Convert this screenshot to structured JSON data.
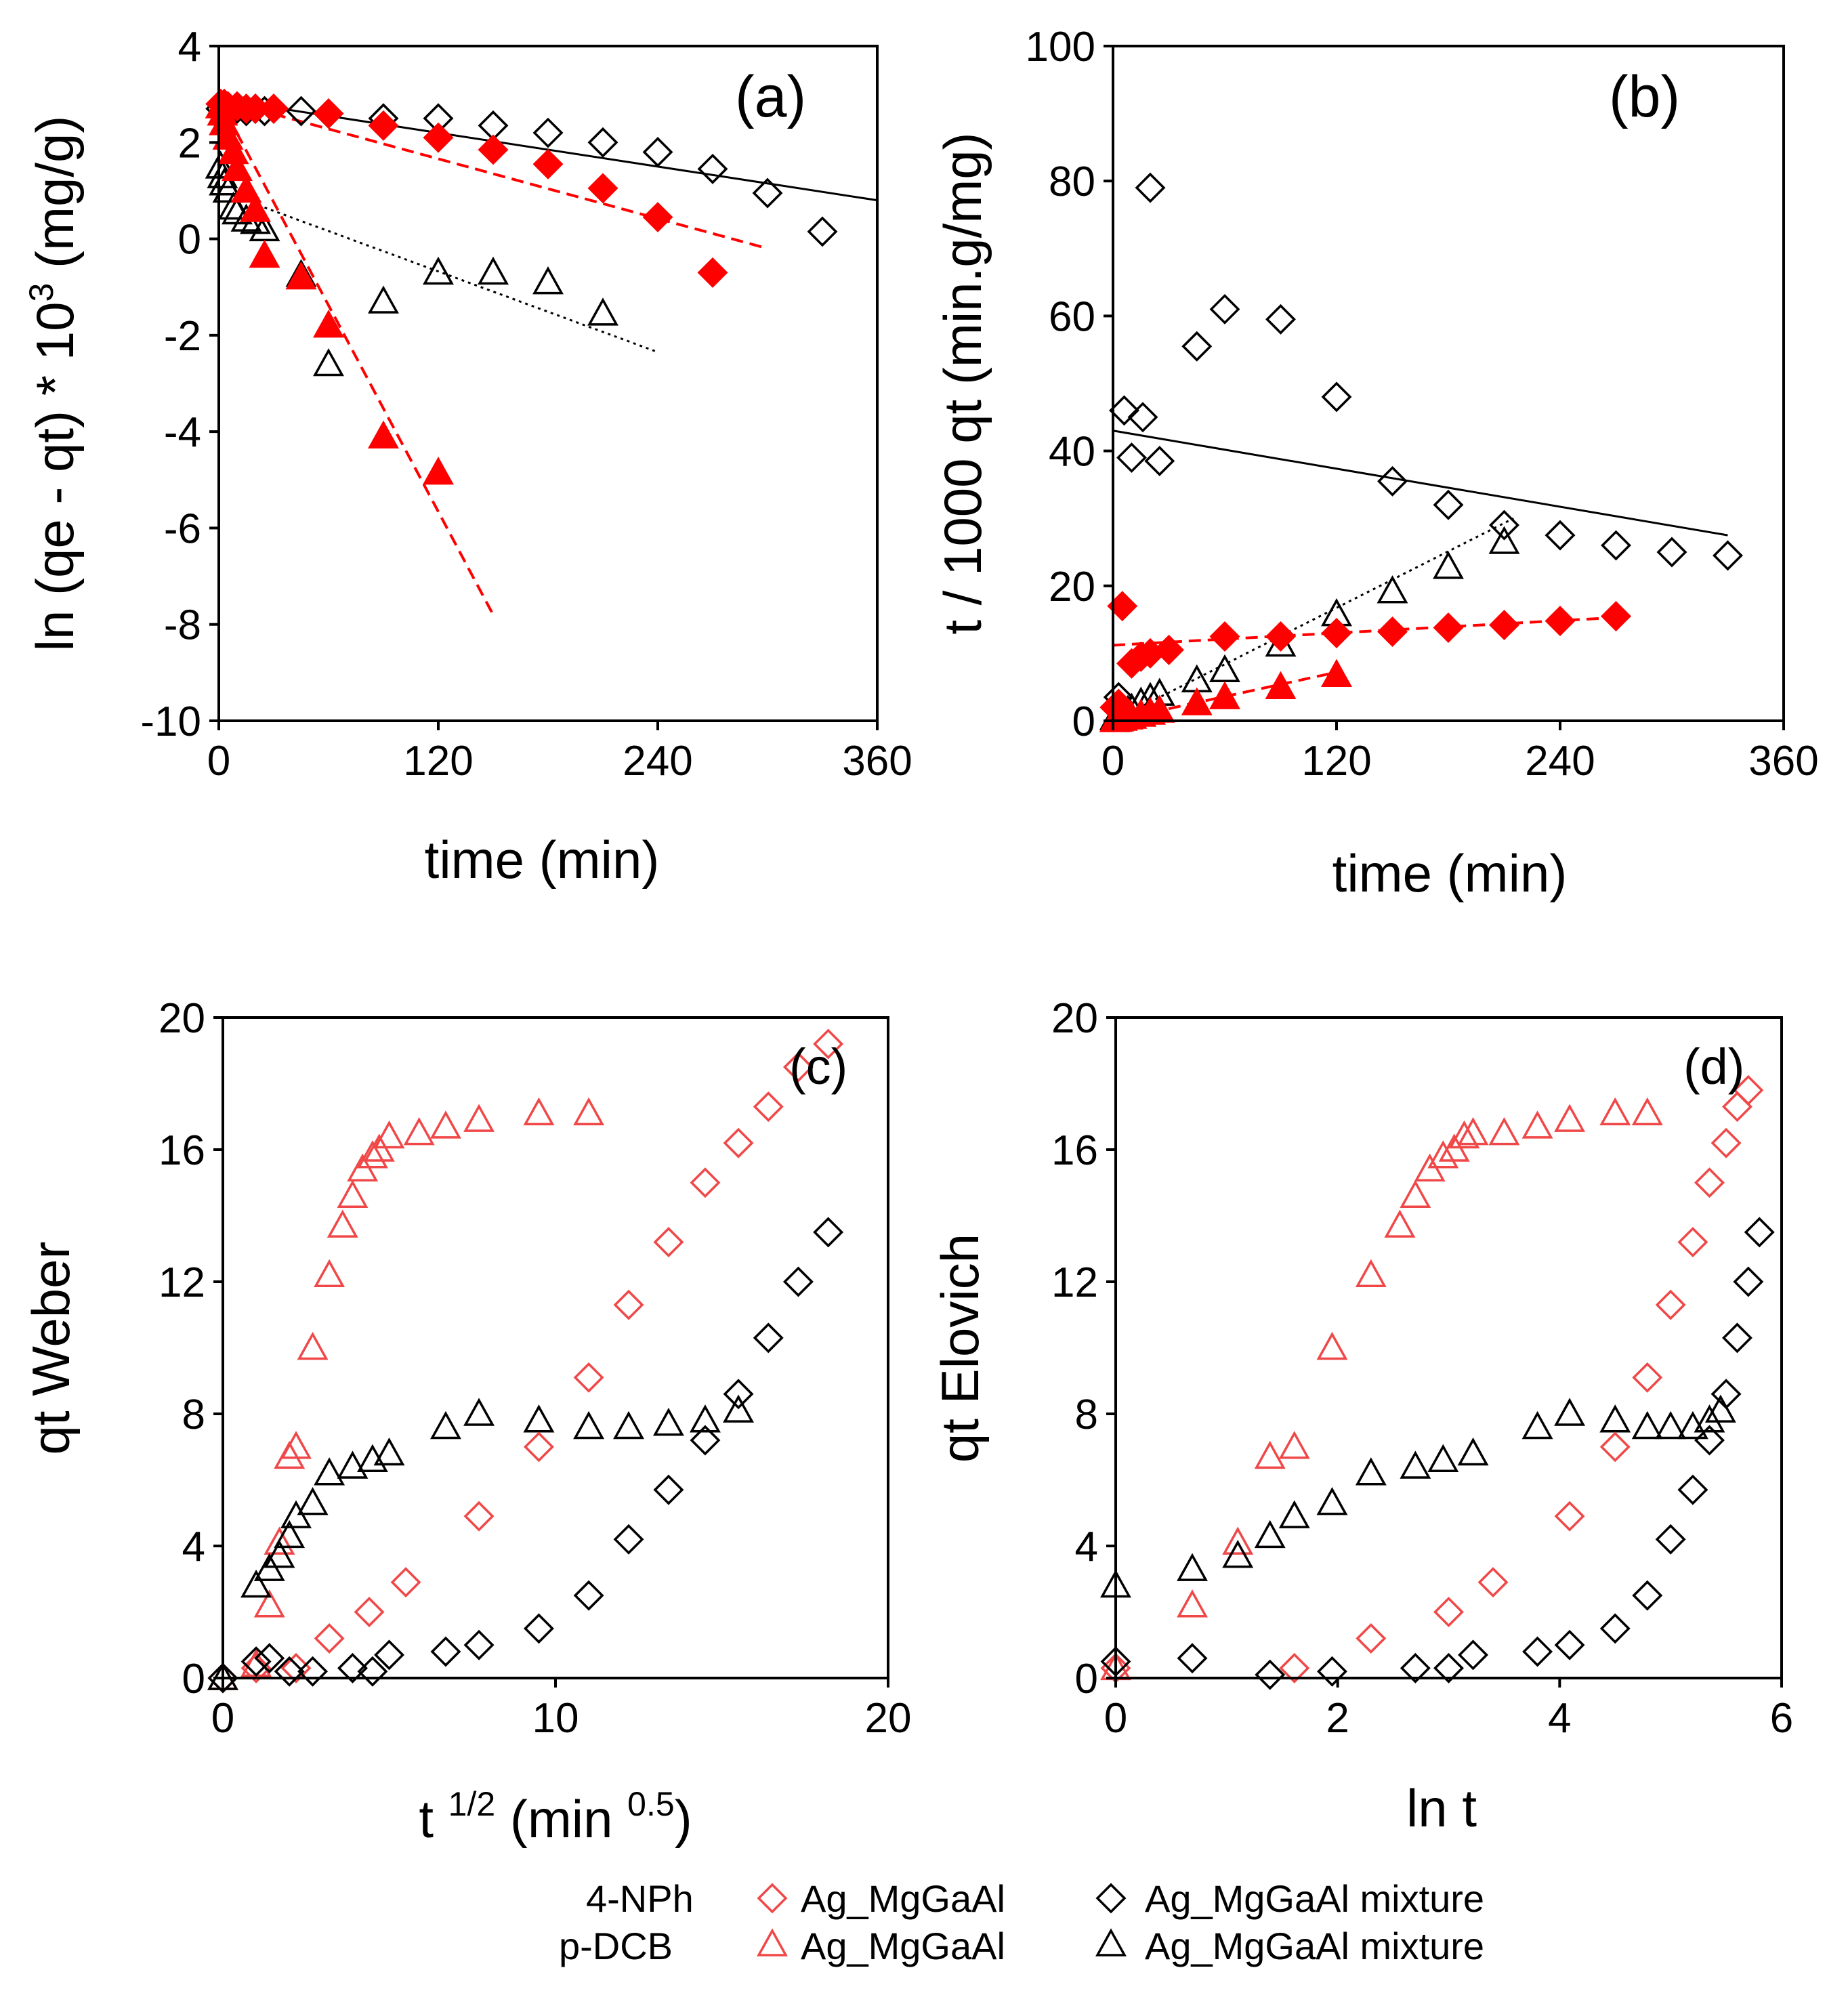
{
  "colors": {
    "red": "#ff0000",
    "black": "#000000",
    "light_red": "#f04848"
  },
  "chart_data": [
    {
      "id": "a",
      "type": "scatter",
      "panel_label": "(a)",
      "xlabel": "time (min)",
      "ylabel_main": "ln (qe - qt) * 10",
      "ylabel_sup": "3",
      "ylabel_tail": " (mg/g)",
      "xlim": [
        0,
        360
      ],
      "ylim": [
        -10,
        4
      ],
      "xticks": [
        0,
        120,
        240,
        360
      ],
      "yticks": [
        -10,
        -8,
        -6,
        -4,
        -2,
        0,
        2,
        4
      ],
      "xticklabels": [
        "0",
        "120",
        "240",
        "360"
      ],
      "yticklabels": [
        "-10",
        "-8",
        "-6",
        "-4",
        "-2",
        "0",
        "2",
        "4"
      ],
      "series": [
        {
          "name": "4-NPh Ag_MgGaAl mixture",
          "marker": "diamond",
          "fill": "none",
          "color": "black",
          "x": [
            1,
            3,
            5,
            8,
            10,
            15,
            20,
            25,
            45,
            60,
            90,
            120,
            150,
            180,
            210,
            240,
            270,
            300,
            330
          ],
          "y": [
            2.7,
            2.75,
            2.7,
            2.65,
            2.7,
            2.65,
            2.7,
            2.65,
            2.65,
            2.6,
            2.5,
            2.5,
            2.35,
            2.2,
            2.0,
            1.8,
            1.45,
            0.95,
            0.15
          ]
        },
        {
          "name": "4-NPh Ag_MgGaAl",
          "marker": "diamond",
          "fill": "filled",
          "color": "red",
          "x": [
            1,
            3,
            5,
            10,
            15,
            20,
            30,
            60,
            90,
            120,
            150,
            180,
            210,
            240,
            270
          ],
          "y": [
            2.8,
            2.8,
            2.75,
            2.75,
            2.7,
            2.7,
            2.7,
            2.6,
            2.35,
            2.1,
            1.85,
            1.55,
            1.05,
            0.45,
            -0.7
          ]
        },
        {
          "name": "p-DCB Ag_MgGaAl mixture",
          "marker": "triangle",
          "fill": "none",
          "color": "black",
          "x": [
            1,
            2,
            3,
            5,
            8,
            10,
            15,
            20,
            25,
            45,
            60,
            90,
            120,
            150,
            180,
            210
          ],
          "y": [
            1.5,
            1.3,
            1.15,
            1.0,
            0.65,
            0.55,
            0.4,
            0.35,
            0.2,
            -0.75,
            -2.6,
            -1.3,
            -0.7,
            -0.7,
            -0.9,
            -1.55
          ]
        },
        {
          "name": "p-DCB Ag_MgGaAl",
          "marker": "triangle",
          "fill": "filled",
          "color": "red",
          "x": [
            1,
            2,
            3,
            5,
            8,
            10,
            15,
            20,
            25,
            45,
            60,
            90,
            120
          ],
          "y": [
            2.75,
            2.6,
            2.4,
            2.1,
            1.8,
            1.45,
            1.0,
            0.6,
            -0.35,
            -0.8,
            -1.8,
            -4.1,
            -4.85
          ]
        }
      ],
      "fits": [
        {
          "style": "solid",
          "color": "black",
          "x": [
            0,
            360
          ],
          "y": [
            2.9,
            0.8
          ]
        },
        {
          "style": "dashed",
          "color": "red",
          "x": [
            0,
            300
          ],
          "y": [
            2.9,
            -0.2
          ]
        },
        {
          "style": "dotted",
          "color": "black",
          "x": [
            25,
            240
          ],
          "y": [
            0.65,
            -2.35
          ]
        },
        {
          "style": "dashed",
          "color": "red",
          "x": [
            0,
            150
          ],
          "y": [
            2.9,
            -7.8
          ]
        }
      ]
    },
    {
      "id": "b",
      "type": "scatter",
      "panel_label": "(b)",
      "xlabel": "time (min)",
      "ylabel_main": "t / 1000 qt (min.g/mg)",
      "xlim": [
        0,
        360
      ],
      "ylim": [
        0,
        100
      ],
      "xticks": [
        0,
        120,
        240,
        360
      ],
      "yticks": [
        0,
        20,
        40,
        60,
        80,
        100
      ],
      "xticklabels": [
        "0",
        "120",
        "240",
        "360"
      ],
      "yticklabels": [
        "0",
        "20",
        "40",
        "60",
        "80",
        "100"
      ],
      "series": [
        {
          "name": "4-NPh Ag_MgGaAl mixture",
          "marker": "diamond",
          "fill": "none",
          "color": "black",
          "x": [
            3,
            6,
            10,
            16,
            20,
            25,
            45,
            60,
            90,
            120,
            150,
            180,
            210,
            240,
            270,
            300,
            330
          ],
          "y": [
            3.5,
            46,
            39,
            45,
            79,
            38.5,
            55.5,
            61,
            59.5,
            48,
            35.5,
            32,
            29,
            27.5,
            26,
            25,
            24.5
          ]
        },
        {
          "name": "p-DCB Ag_MgGaAl mixture",
          "marker": "triangle",
          "fill": "none",
          "color": "black",
          "x": [
            1,
            2,
            3,
            5,
            8,
            10,
            15,
            20,
            25,
            45,
            60,
            90,
            120,
            150,
            180,
            210
          ],
          "y": [
            0.4,
            0.6,
            0.8,
            1.0,
            1.5,
            1.8,
            2.7,
            3.4,
            4.0,
            6.0,
            7.5,
            11.3,
            15.8,
            19.2,
            22.8,
            26.5
          ]
        },
        {
          "name": "4-NPh Ag_MgGaAl",
          "marker": "diamond",
          "fill": "filled",
          "color": "red",
          "x": [
            1,
            3,
            5,
            10,
            15,
            20,
            30,
            60,
            90,
            120,
            150,
            180,
            210,
            240,
            270
          ],
          "y": [
            2.0,
            2.5,
            17,
            8.5,
            9.5,
            10.0,
            10.5,
            12.5,
            12.5,
            13.0,
            13.2,
            13.8,
            14.2,
            14.8,
            15.5
          ]
        },
        {
          "name": "p-DCB Ag_MgGaAl",
          "marker": "triangle",
          "fill": "filled",
          "color": "red",
          "x": [
            1,
            2,
            3,
            5,
            8,
            10,
            15,
            20,
            25,
            45,
            60,
            90,
            120
          ],
          "y": [
            0.1,
            0.15,
            0.2,
            0.3,
            0.5,
            0.6,
            0.9,
            1.2,
            1.5,
            2.6,
            3.5,
            5.0,
            6.8
          ]
        }
      ],
      "fits": [
        {
          "style": "solid",
          "color": "black",
          "x": [
            0,
            330
          ],
          "y": [
            43,
            27.5
          ]
        },
        {
          "style": "dotted",
          "color": "black",
          "x": [
            0,
            215
          ],
          "y": [
            0,
            30
          ]
        },
        {
          "style": "dashed",
          "color": "red",
          "x": [
            0,
            270
          ],
          "y": [
            11.2,
            15.3
          ]
        },
        {
          "style": "dashed",
          "color": "red",
          "x": [
            0,
            120
          ],
          "y": [
            0,
            7.2
          ]
        }
      ]
    },
    {
      "id": "c",
      "type": "scatter",
      "panel_label": "(c)",
      "xlabel_main": "t ",
      "xlabel_sup1": "1/2",
      "xlabel_mid": " (min ",
      "xlabel_sup2": "0.5",
      "xlabel_tail": ")",
      "ylabel_main": "qt Weber",
      "xlim": [
        0,
        20
      ],
      "ylim": [
        0,
        20
      ],
      "xticks": [
        0,
        10,
        20
      ],
      "yticks": [
        0,
        4,
        8,
        12,
        16,
        20
      ],
      "xticklabels": [
        "0",
        "10",
        "20"
      ],
      "yticklabels": [
        "0",
        "4",
        "8",
        "12",
        "16",
        "20"
      ],
      "series": [
        {
          "name": "p-DCB Ag_MgGaAl",
          "marker": "triangle",
          "fill": "none",
          "color": "light_red",
          "x": [
            0,
            1.0,
            1.4,
            1.7,
            2.0,
            2.2,
            2.7,
            3.2,
            3.6,
            3.9,
            4.2,
            4.5,
            4.7,
            5.0,
            5.9,
            6.7,
            7.7,
            9.5,
            11.0
          ],
          "y": [
            0,
            0.4,
            2.2,
            4.1,
            6.7,
            7.0,
            10.0,
            12.2,
            13.7,
            14.6,
            15.4,
            15.8,
            16.0,
            16.4,
            16.5,
            16.7,
            16.9,
            17.1,
            17.1
          ]
        },
        {
          "name": "p-DCB Ag_MgGaAl mixture",
          "marker": "triangle",
          "fill": "none",
          "color": "black",
          "x": [
            0,
            1.0,
            1.4,
            1.7,
            2.0,
            2.2,
            2.7,
            3.2,
            3.9,
            4.5,
            5.0,
            6.7,
            7.7,
            9.5,
            11.0,
            12.2,
            13.4,
            14.5,
            15.5
          ],
          "y": [
            0,
            2.8,
            3.3,
            3.7,
            4.3,
            4.9,
            5.3,
            6.2,
            6.4,
            6.6,
            6.8,
            7.6,
            8.0,
            7.8,
            7.6,
            7.6,
            7.7,
            7.8,
            8.1
          ]
        },
        {
          "name": "4-NPh Ag_MgGaAl",
          "marker": "diamond",
          "fill": "none",
          "color": "light_red",
          "x": [
            0,
            1.0,
            2.2,
            3.2,
            4.4,
            5.5,
            7.7,
            9.5,
            11.0,
            12.2,
            13.4,
            14.5,
            15.5,
            16.4,
            17.3,
            18.2
          ],
          "y": [
            0,
            0.3,
            0.3,
            1.2,
            2.0,
            2.9,
            4.9,
            7.0,
            9.1,
            11.3,
            13.2,
            15.0,
            16.2,
            17.3,
            18.5,
            19.2
          ]
        },
        {
          "name": "4-NPh Ag_MgGaAl mixture",
          "marker": "diamond",
          "fill": "none",
          "color": "black",
          "x": [
            0,
            1.0,
            1.4,
            2.0,
            2.7,
            3.9,
            4.5,
            5.0,
            6.7,
            7.7,
            9.5,
            11.0,
            12.2,
            13.4,
            14.5,
            15.5,
            16.4,
            17.3,
            18.2
          ],
          "y": [
            0,
            0.5,
            0.6,
            0.2,
            0.2,
            0.3,
            0.2,
            0.7,
            0.8,
            1.0,
            1.5,
            2.5,
            4.2,
            5.7,
            7.2,
            8.6,
            10.3,
            12.0,
            13.5
          ]
        }
      ]
    },
    {
      "id": "d",
      "type": "scatter",
      "panel_label": "(d)",
      "xlabel": "ln t",
      "ylabel_main": "qt Elovich",
      "xlim": [
        0,
        6
      ],
      "ylim": [
        0,
        20
      ],
      "xticks": [
        0,
        2,
        4,
        6
      ],
      "yticks": [
        0,
        4,
        8,
        12,
        16,
        20
      ],
      "xticklabels": [
        "0",
        "2",
        "4",
        "6"
      ],
      "yticklabels": [
        "0",
        "4",
        "8",
        "12",
        "16",
        "20"
      ],
      "series": [
        {
          "name": "p-DCB Ag_MgGaAl",
          "marker": "triangle",
          "fill": "none",
          "color": "light_red",
          "x": [
            0,
            0.69,
            1.1,
            1.39,
            1.61,
            1.95,
            2.3,
            2.56,
            2.7,
            2.83,
            2.95,
            3.05,
            3.14,
            3.22,
            3.5,
            3.8,
            4.09,
            4.5,
            4.79
          ],
          "y": [
            0.3,
            2.2,
            4.1,
            6.7,
            7.0,
            10.0,
            12.2,
            13.7,
            14.6,
            15.4,
            15.8,
            16.0,
            16.4,
            16.5,
            16.5,
            16.7,
            16.9,
            17.1,
            17.1
          ]
        },
        {
          "name": "p-DCB Ag_MgGaAl mixture",
          "marker": "triangle",
          "fill": "none",
          "color": "black",
          "x": [
            0,
            0.69,
            1.1,
            1.39,
            1.61,
            1.95,
            2.3,
            2.7,
            2.95,
            3.22,
            3.8,
            4.09,
            4.5,
            4.79,
            5.0,
            5.2,
            5.35,
            5.45
          ],
          "y": [
            2.8,
            3.3,
            3.7,
            4.3,
            4.9,
            5.3,
            6.2,
            6.4,
            6.6,
            6.8,
            7.6,
            8.0,
            7.8,
            7.6,
            7.6,
            7.6,
            7.8,
            8.1
          ]
        },
        {
          "name": "4-NPh Ag_MgGaAl",
          "marker": "diamond",
          "fill": "none",
          "color": "light_red",
          "x": [
            0,
            1.61,
            2.3,
            3.0,
            3.4,
            4.09,
            4.5,
            4.79,
            5.0,
            5.2,
            5.35,
            5.5,
            5.6,
            5.7
          ],
          "y": [
            0.3,
            0.3,
            1.2,
            2.0,
            2.9,
            4.9,
            7.0,
            9.1,
            11.3,
            13.2,
            15.0,
            16.2,
            17.3,
            17.8
          ]
        },
        {
          "name": "4-NPh Ag_MgGaAl mixture",
          "marker": "diamond",
          "fill": "none",
          "color": "black",
          "x": [
            0,
            0.69,
            1.39,
            1.95,
            2.7,
            3.0,
            3.22,
            3.8,
            4.09,
            4.5,
            4.79,
            5.0,
            5.2,
            5.35,
            5.5,
            5.6,
            5.7,
            5.8
          ],
          "y": [
            0.5,
            0.6,
            0.1,
            0.2,
            0.3,
            0.3,
            0.7,
            0.8,
            1.0,
            1.5,
            2.5,
            4.2,
            5.7,
            7.2,
            8.6,
            10.3,
            12.0,
            13.5
          ]
        }
      ]
    }
  ],
  "legend": {
    "row1_compound": "4-NPh",
    "row2_compound": "p-DCB",
    "entry_single": "Ag_MgGaAl",
    "entry_mixture": "Ag_MgGaAl mixture"
  }
}
